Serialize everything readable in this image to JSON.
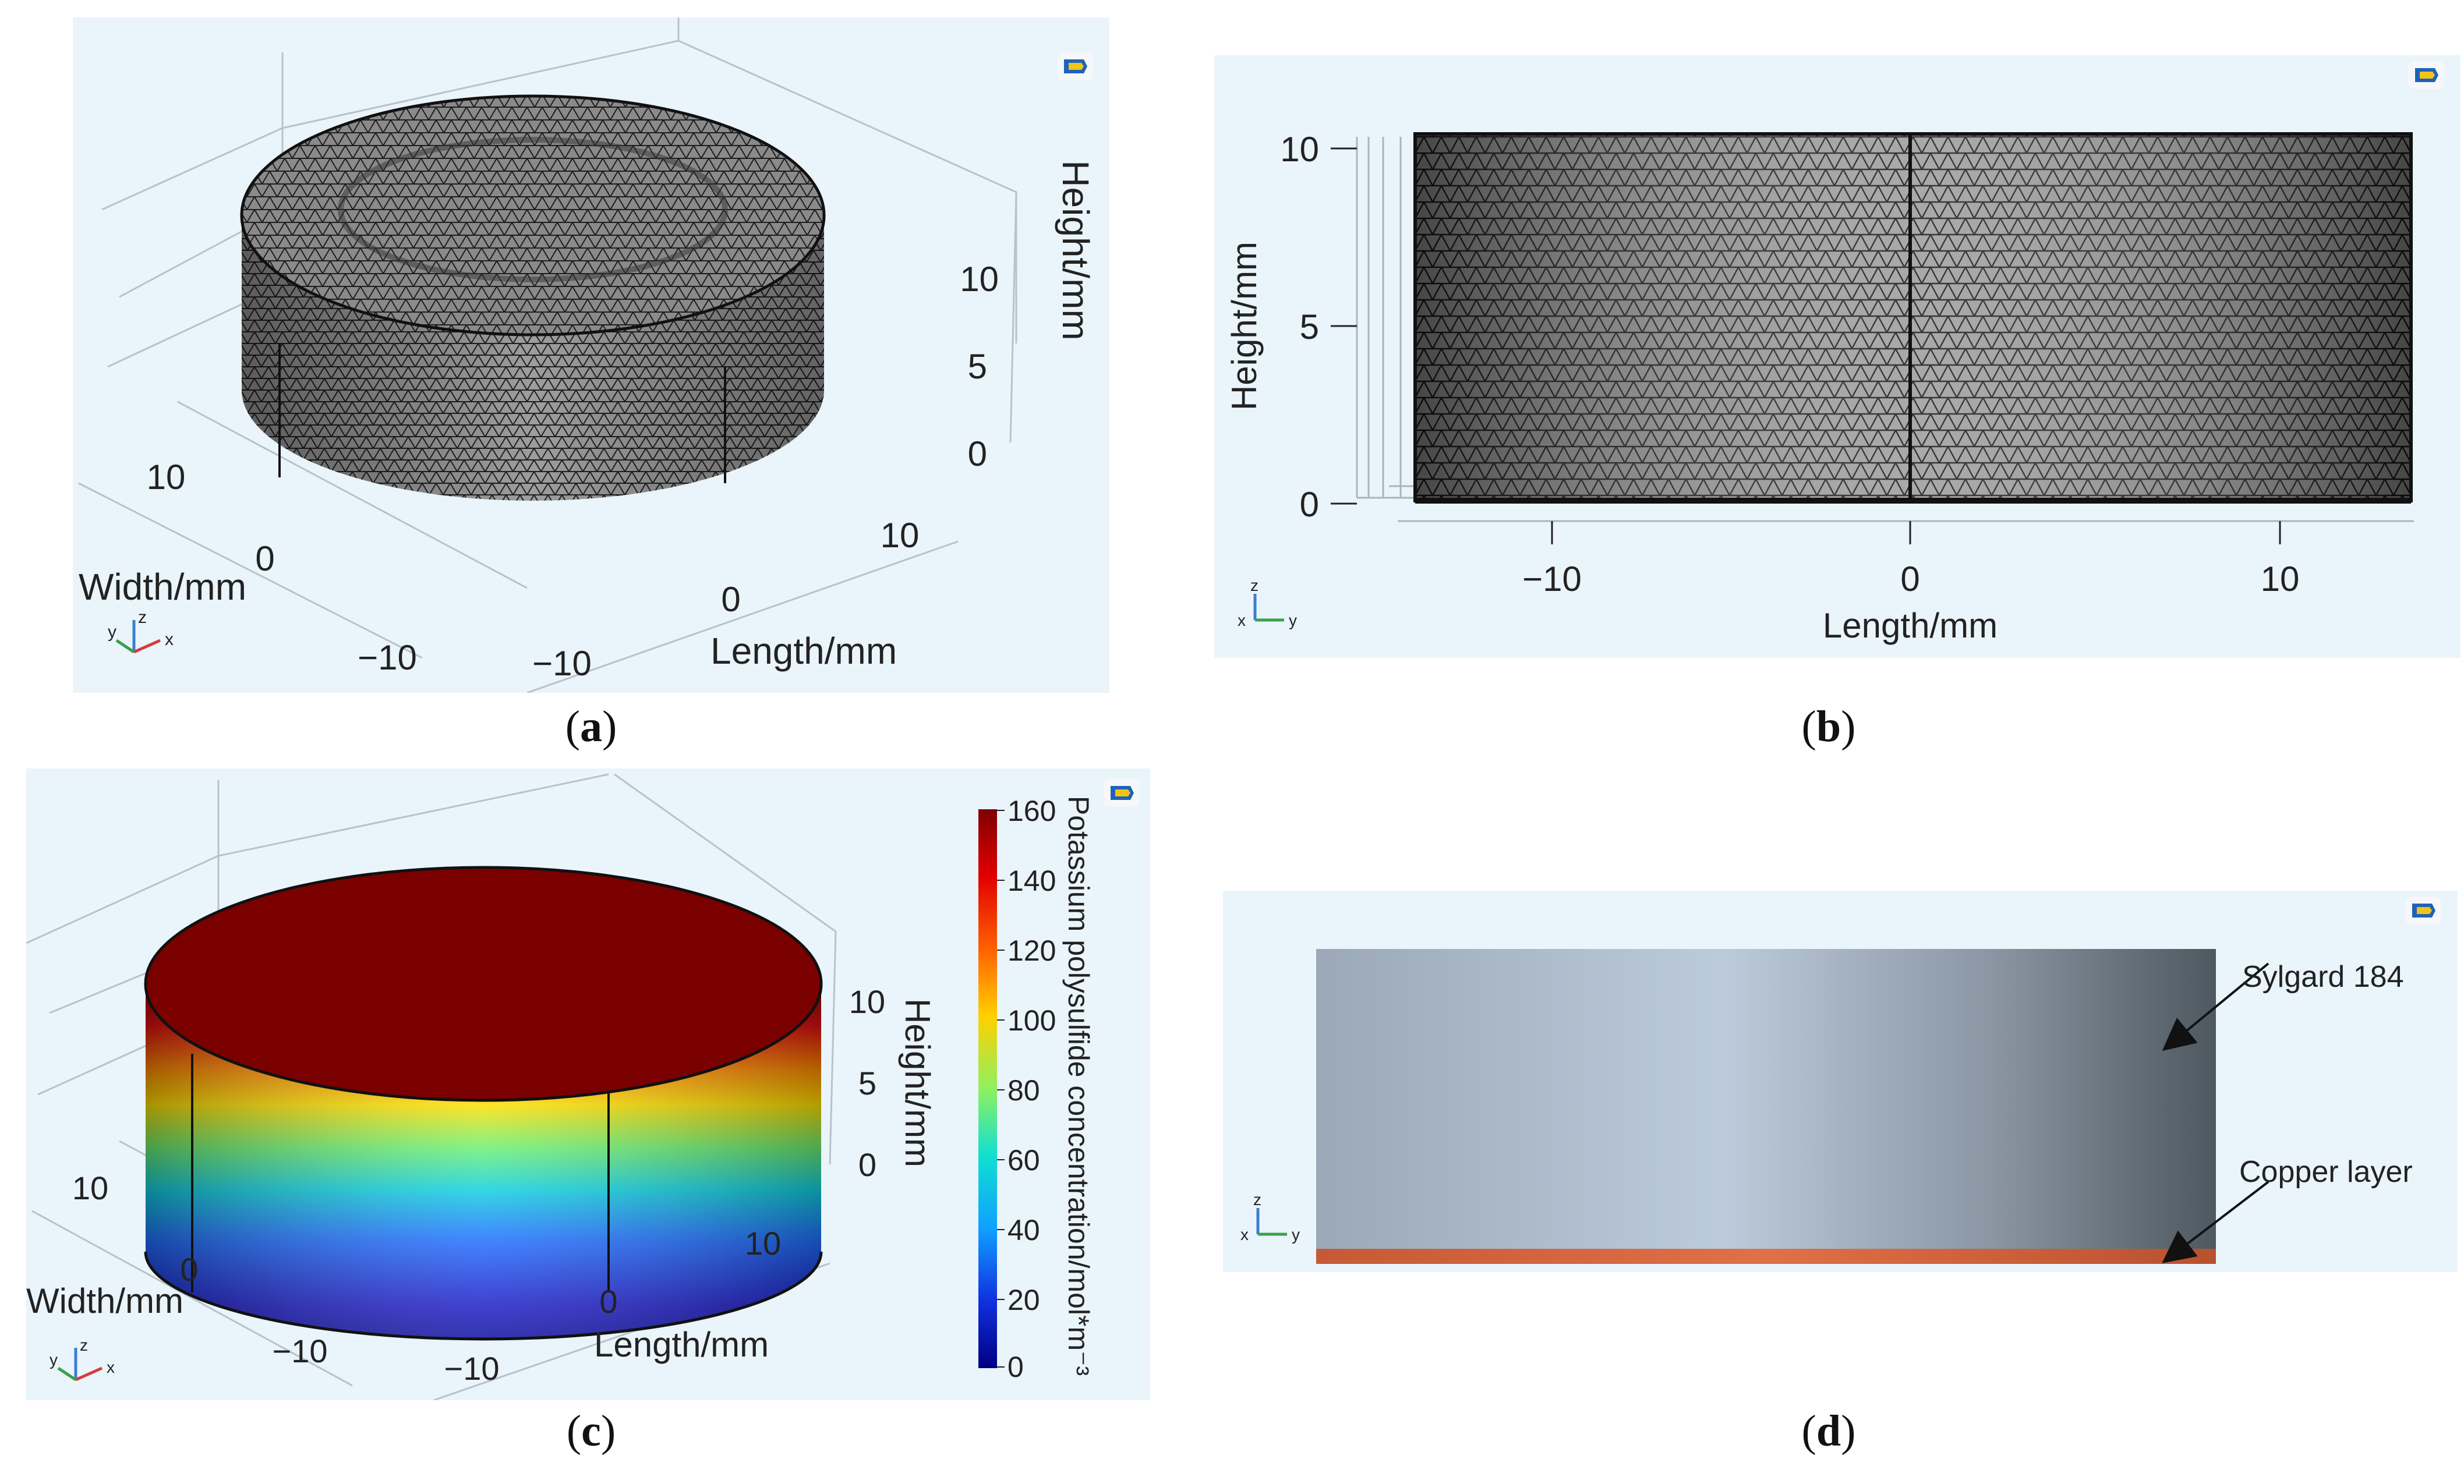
{
  "panels": {
    "a": {
      "caption_letter": "a",
      "axis_height": "Height/mm",
      "axis_width": "Width/mm",
      "axis_length": "Length/mm",
      "height_ticks": [
        "10",
        "5",
        "0"
      ],
      "width_ticks": [
        "10",
        "0",
        "−10"
      ],
      "length_ticks": [
        "10",
        "0",
        "−10"
      ],
      "triad": {
        "y": "y",
        "z": "z",
        "x": "x"
      }
    },
    "b": {
      "caption_letter": "b",
      "axis_height": "Height/mm",
      "axis_length": "Length/mm",
      "height_ticks": [
        "10",
        "5",
        "0"
      ],
      "length_ticks": [
        "−10",
        "0",
        "10"
      ],
      "triad": {
        "z": "z",
        "x": "x",
        "y": "y"
      }
    },
    "c": {
      "caption_letter": "c",
      "axis_height": "Height/mm",
      "axis_width": "Width/mm",
      "axis_length": "Length/mm",
      "height_ticks": [
        "10",
        "5",
        "0"
      ],
      "width_ticks": [
        "10",
        "0",
        "−10"
      ],
      "length_ticks": [
        "10",
        "0",
        "−10"
      ],
      "colorbar_title": "Potassium polysulfide concentration/mol*m⁻³",
      "colorbar_ticks": [
        "160",
        "140",
        "120",
        "100",
        "80",
        "60",
        "40",
        "20",
        "0"
      ],
      "triad": {
        "y": "y",
        "z": "z",
        "x": "x"
      }
    },
    "d": {
      "caption_letter": "d",
      "label_top": "Sylgard 184",
      "label_bottom": "Copper layer",
      "triad": {
        "z": "z",
        "x": "x",
        "y": "y"
      }
    }
  },
  "colors": {
    "panel_bg": "#eaf4fb",
    "mesh_dark": "#2a2a2a",
    "copper": "#d4663c",
    "sylgard_dark": "#505a62",
    "sylgard_light": "#b6c6d6",
    "concentration_top": "#7a0000"
  }
}
